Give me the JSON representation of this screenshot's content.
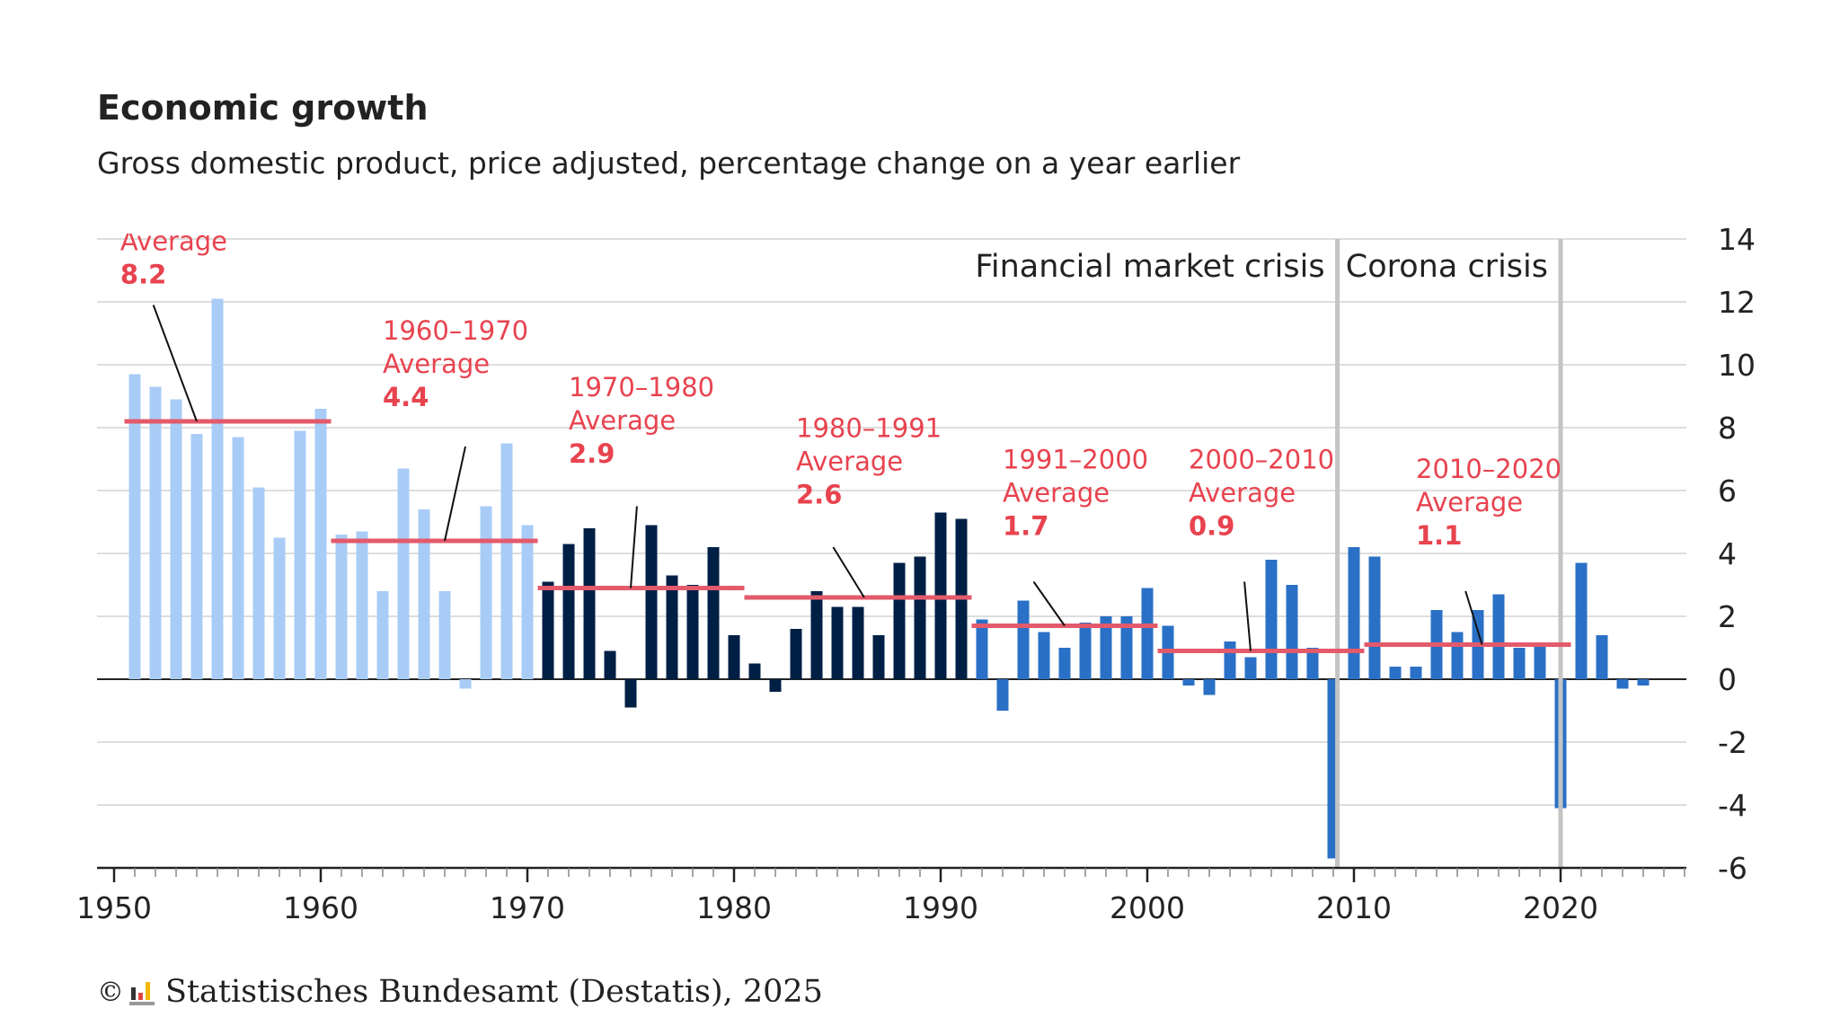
{
  "header": {
    "title": "Economic growth",
    "subtitle": "Gross domestic product, price adjusted, percentage change on a year earlier"
  },
  "footer": {
    "copyright": "©",
    "source": "Statistisches Bundesamt (Destatis), 2025"
  },
  "colors": {
    "era1950s_1960s": "#a9ccf7",
    "era1970_1991": "#001f45",
    "era1992_2024": "#2a70c6",
    "average_line": "#e35a6b",
    "average_text": "#e8434f",
    "crisis_line": "#c4c4c4",
    "grid": "#d3d3d3",
    "axis": "#222222"
  },
  "chart_data": {
    "type": "bar",
    "ylim": [
      -6,
      14
    ],
    "yticks": [
      14,
      12,
      10,
      8,
      6,
      4,
      2,
      0,
      -2,
      -4,
      -6
    ],
    "xticks": [
      1950,
      1960,
      1970,
      1980,
      1990,
      2000,
      2010,
      2020
    ],
    "grid": "horizontal",
    "x": [
      1951,
      1952,
      1953,
      1954,
      1955,
      1956,
      1957,
      1958,
      1959,
      1960,
      1961,
      1962,
      1963,
      1964,
      1965,
      1966,
      1967,
      1968,
      1969,
      1970,
      1971,
      1972,
      1973,
      1974,
      1975,
      1976,
      1977,
      1978,
      1979,
      1980,
      1981,
      1982,
      1983,
      1984,
      1985,
      1986,
      1987,
      1988,
      1989,
      1990,
      1991,
      1992,
      1993,
      1994,
      1995,
      1996,
      1997,
      1998,
      1999,
      2000,
      2001,
      2002,
      2003,
      2004,
      2005,
      2006,
      2007,
      2008,
      2009,
      2010,
      2011,
      2012,
      2013,
      2014,
      2015,
      2016,
      2017,
      2018,
      2019,
      2020,
      2021,
      2022,
      2023,
      2024
    ],
    "values": [
      9.7,
      9.3,
      8.9,
      7.8,
      12.1,
      7.7,
      6.1,
      4.5,
      7.9,
      8.6,
      4.6,
      4.7,
      2.8,
      6.7,
      5.4,
      2.8,
      -0.3,
      5.5,
      7.5,
      4.9,
      3.1,
      4.3,
      4.8,
      0.9,
      -0.9,
      4.9,
      3.3,
      3.0,
      4.2,
      1.4,
      0.5,
      -0.4,
      1.6,
      2.8,
      2.3,
      2.3,
      1.4,
      3.7,
      3.9,
      5.3,
      5.1,
      1.9,
      -1.0,
      2.5,
      1.5,
      1.0,
      1.8,
      2.0,
      2.0,
      2.9,
      1.7,
      -0.2,
      -0.5,
      1.2,
      0.7,
      3.8,
      3.0,
      1.0,
      -5.7,
      4.2,
      3.9,
      0.4,
      0.4,
      2.2,
      1.5,
      2.2,
      2.7,
      1.0,
      1.1,
      -4.1,
      3.7,
      1.4,
      -0.3,
      -0.2
    ],
    "eras": [
      {
        "from": 1950,
        "to": 1970,
        "color_key": "era1950s_1960s"
      },
      {
        "from": 1971,
        "to": 1991,
        "color_key": "era1970_1991"
      },
      {
        "from": 1992,
        "to": 2024,
        "color_key": "era1992_2024"
      }
    ],
    "averages": [
      {
        "period": "",
        "word": "Average",
        "value": "8.2",
        "from": 1950.5,
        "to": 1960.5,
        "level": 8.2,
        "label_year": 1950.3,
        "label_top": 14.7,
        "arrow_from": [
          1951.9,
          11.9
        ],
        "arrow_to": [
          1954,
          8.2
        ]
      },
      {
        "period": "1960–1970",
        "word": "Average",
        "value": "4.4",
        "from": 1960.5,
        "to": 1970.5,
        "level": 4.4,
        "label_year": 1963.0,
        "label_top": 10.8,
        "arrow_from": [
          1967.0,
          7.4
        ],
        "arrow_to": [
          1966.0,
          4.4
        ]
      },
      {
        "period": "1970–1980",
        "word": "Average",
        "value": "2.9",
        "from": 1970.5,
        "to": 1980.5,
        "level": 2.9,
        "label_year": 1972.0,
        "label_top": 9.0,
        "arrow_from": [
          1975.3,
          5.5
        ],
        "arrow_to": [
          1975.0,
          2.9
        ]
      },
      {
        "period": "1980–1991",
        "word": "Average",
        "value": "2.6",
        "from": 1980.5,
        "to": 1991.5,
        "level": 2.6,
        "label_year": 1983.0,
        "label_top": 7.7,
        "arrow_from": [
          1984.8,
          4.2
        ],
        "arrow_to": [
          1986.3,
          2.6
        ]
      },
      {
        "period": "1991–2000",
        "word": "Average",
        "value": "1.7",
        "from": 1991.5,
        "to": 2000.5,
        "level": 1.7,
        "label_year": 1993.0,
        "label_top": 6.7,
        "arrow_from": [
          1994.5,
          3.1
        ],
        "arrow_to": [
          1996.0,
          1.7
        ]
      },
      {
        "period": "2000–2010",
        "word": "Average",
        "value": "0.9",
        "from": 2000.5,
        "to": 2010.5,
        "level": 0.9,
        "label_year": 2002.0,
        "label_top": 6.7,
        "arrow_from": [
          2004.7,
          3.1
        ],
        "arrow_to": [
          2005.0,
          0.9
        ]
      },
      {
        "period": "2010–2020",
        "word": "Average",
        "value": "1.1",
        "from": 2010.5,
        "to": 2020.5,
        "level": 1.1,
        "label_year": 2013.0,
        "label_top": 6.4,
        "arrow_from": [
          2015.4,
          2.8
        ],
        "arrow_to": [
          2016.2,
          1.1
        ]
      }
    ],
    "crises": [
      {
        "label": "Financial market crisis",
        "year": 2009.2,
        "text_anchor": "end"
      },
      {
        "label": "Corona crisis",
        "year": 2020.0,
        "text_anchor": "end"
      }
    ]
  }
}
